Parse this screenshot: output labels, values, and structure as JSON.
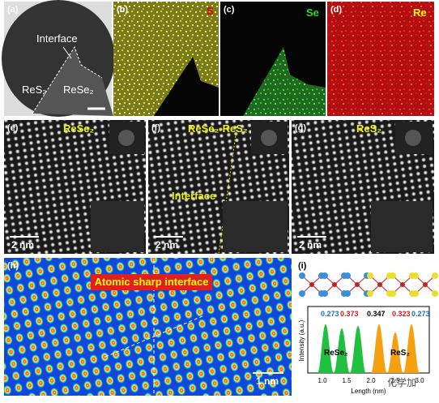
{
  "panels": {
    "a": {
      "label": "(a)",
      "interface": "Interface",
      "left": "ReS₂",
      "right": "ReSe₂"
    },
    "b": {
      "label": "(b)",
      "element": "S"
    },
    "c": {
      "label": "(c)",
      "element": "Se"
    },
    "d": {
      "label": "(d)",
      "element": "Re"
    },
    "e": {
      "label": "(e)",
      "title": "ReSe₂",
      "scale": "2 nm"
    },
    "f": {
      "label": "(f)",
      "title": "ReSe₂-ReS₂",
      "interface": "Interface",
      "scale": "2 nm"
    },
    "g": {
      "label": "(g)",
      "title": "ReS₂",
      "scale": "2 nm"
    },
    "h": {
      "label": "(h)",
      "title": "Atomic sharp interface",
      "scale": "1 nm"
    },
    "i": {
      "label": "(i)",
      "distances": [
        "0.273",
        "0.373",
        "0.347",
        "0.323",
        "0.273"
      ],
      "ylabel": "Intensity (a.u.)",
      "left": "ReSe₂",
      "right": "ReS₂",
      "xticks": [
        "1.0",
        "1.5",
        "2.0",
        "2.5",
        "3.0"
      ],
      "xlabel": "Length (nm)"
    }
  },
  "watermark": "化学加"
}
